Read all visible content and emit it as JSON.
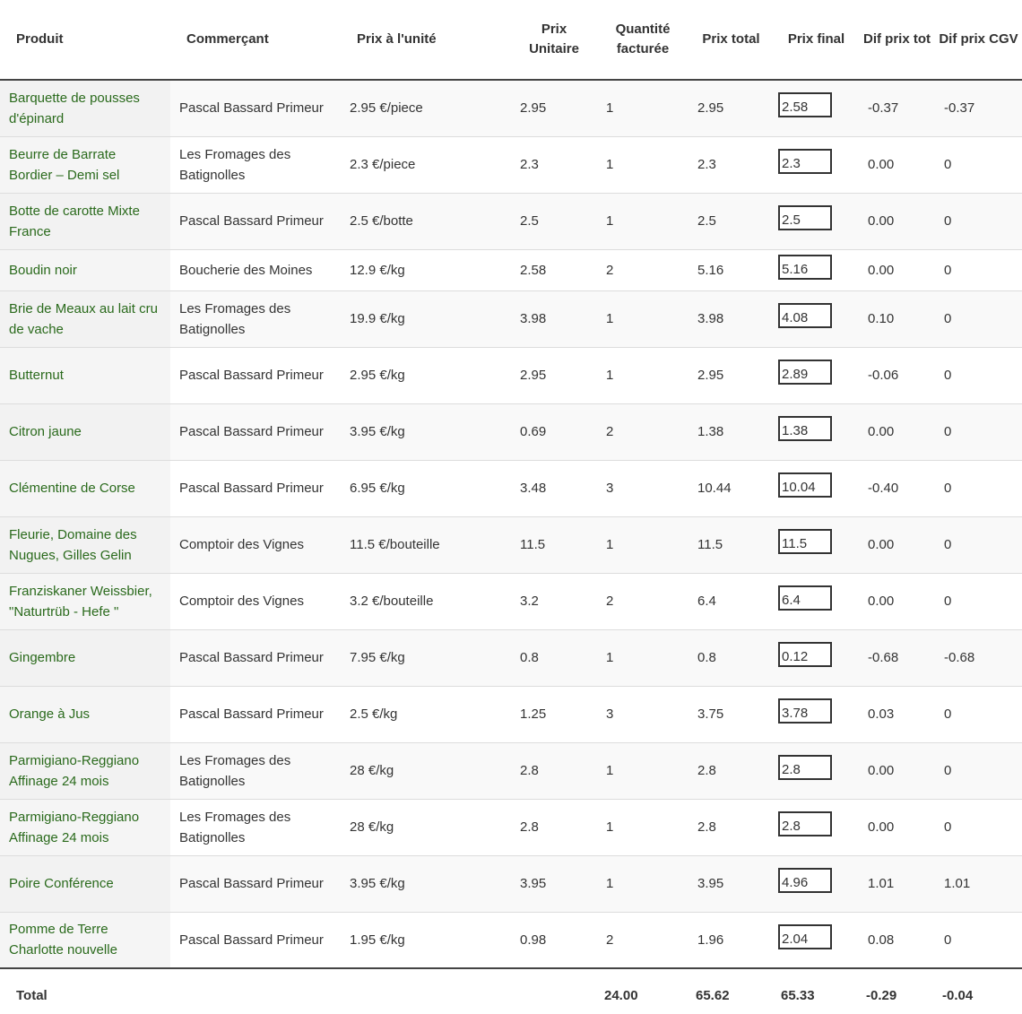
{
  "table": {
    "headers": {
      "produit": "Produit",
      "commercant": "Commerçant",
      "prix_unite": "Prix à l'unité",
      "prix_unitaire": "Prix Unitaire",
      "quantite": "Quantité facturée",
      "prix_total": "Prix total",
      "prix_final": "Prix final",
      "dif_prix_tot": "Dif prix tot",
      "dif_prix_cgv": "Dif prix CGV"
    },
    "rows": [
      {
        "produit": "Barquette de pousses d'épinard",
        "commercant": "Pascal Bassard Primeur",
        "prix_unite": "2.95 €/piece",
        "prix_unitaire": "2.95",
        "quantite": "1",
        "prix_total": "2.95",
        "prix_final": "2.58",
        "dif_tot": "-0.37",
        "dif_cgv": "-0.37"
      },
      {
        "produit": "Beurre de Barrate Bordier – Demi sel",
        "commercant": "Les Fromages des Batignolles",
        "prix_unite": "2.3 €/piece",
        "prix_unitaire": "2.3",
        "quantite": "1",
        "prix_total": "2.3",
        "prix_final": "2.3",
        "dif_tot": "0.00",
        "dif_cgv": "0"
      },
      {
        "produit": "Botte de carotte Mixte France",
        "commercant": "Pascal Bassard Primeur",
        "prix_unite": "2.5 €/botte",
        "prix_unitaire": "2.5",
        "quantite": "1",
        "prix_total": "2.5",
        "prix_final": "2.5",
        "dif_tot": "0.00",
        "dif_cgv": "0"
      },
      {
        "produit": "Boudin noir",
        "commercant": "Boucherie des Moines",
        "prix_unite": "12.9 €/kg",
        "prix_unitaire": "2.58",
        "quantite": "2",
        "prix_total": "5.16",
        "prix_final": "5.16",
        "dif_tot": "0.00",
        "dif_cgv": "0"
      },
      {
        "produit": "Brie de Meaux au lait cru de vache",
        "commercant": "Les Fromages des Batignolles",
        "prix_unite": "19.9 €/kg",
        "prix_unitaire": "3.98",
        "quantite": "1",
        "prix_total": "3.98",
        "prix_final": "4.08",
        "dif_tot": "0.10",
        "dif_cgv": "0"
      },
      {
        "produit": "Butternut",
        "commercant": "Pascal Bassard Primeur",
        "prix_unite": "2.95 €/kg",
        "prix_unitaire": "2.95",
        "quantite": "1",
        "prix_total": "2.95",
        "prix_final": "2.89",
        "dif_tot": "-0.06",
        "dif_cgv": "0"
      },
      {
        "produit": "Citron jaune",
        "commercant": "Pascal Bassard Primeur",
        "prix_unite": "3.95 €/kg",
        "prix_unitaire": "0.69",
        "quantite": "2",
        "prix_total": "1.38",
        "prix_final": "1.38",
        "dif_tot": "0.00",
        "dif_cgv": "0"
      },
      {
        "produit": "Clémentine de Corse",
        "commercant": "Pascal Bassard Primeur",
        "prix_unite": "6.95 €/kg",
        "prix_unitaire": "3.48",
        "quantite": "3",
        "prix_total": "10.44",
        "prix_final": "10.04",
        "dif_tot": "-0.40",
        "dif_cgv": "0"
      },
      {
        "produit": "Fleurie, Domaine des Nugues, Gilles Gelin",
        "commercant": "Comptoir des Vignes",
        "prix_unite": "11.5 €/bouteille",
        "prix_unitaire": "11.5",
        "quantite": "1",
        "prix_total": "11.5",
        "prix_final": "11.5",
        "dif_tot": "0.00",
        "dif_cgv": "0"
      },
      {
        "produit": "Franziskaner Weissbier, \"Naturtrüb - Hefe \"",
        "commercant": "Comptoir des Vignes",
        "prix_unite": "3.2 €/bouteille",
        "prix_unitaire": "3.2",
        "quantite": "2",
        "prix_total": "6.4",
        "prix_final": "6.4",
        "dif_tot": "0.00",
        "dif_cgv": "0"
      },
      {
        "produit": "Gingembre",
        "commercant": "Pascal Bassard Primeur",
        "prix_unite": "7.95 €/kg",
        "prix_unitaire": "0.8",
        "quantite": "1",
        "prix_total": "0.8",
        "prix_final": "0.12",
        "dif_tot": "-0.68",
        "dif_cgv": "-0.68"
      },
      {
        "produit": "Orange à Jus",
        "commercant": "Pascal Bassard Primeur",
        "prix_unite": "2.5 €/kg",
        "prix_unitaire": "1.25",
        "quantite": "3",
        "prix_total": "3.75",
        "prix_final": "3.78",
        "dif_tot": "0.03",
        "dif_cgv": "0"
      },
      {
        "produit": "Parmigiano-Reggiano Affinage 24 mois",
        "commercant": "Les Fromages des Batignolles",
        "prix_unite": "28 €/kg",
        "prix_unitaire": "2.8",
        "quantite": "1",
        "prix_total": "2.8",
        "prix_final": "2.8",
        "dif_tot": "0.00",
        "dif_cgv": "0"
      },
      {
        "produit": "Parmigiano-Reggiano Affinage 24 mois",
        "commercant": "Les Fromages des Batignolles",
        "prix_unite": "28 €/kg",
        "prix_unitaire": "2.8",
        "quantite": "1",
        "prix_total": "2.8",
        "prix_final": "2.8",
        "dif_tot": "0.00",
        "dif_cgv": "0"
      },
      {
        "produit": "Poire Conférence",
        "commercant": "Pascal Bassard Primeur",
        "prix_unite": "3.95 €/kg",
        "prix_unitaire": "3.95",
        "quantite": "1",
        "prix_total": "3.95",
        "prix_final": "4.96",
        "dif_tot": "1.01",
        "dif_cgv": "1.01"
      },
      {
        "produit": "Pomme de Terre Charlotte nouvelle",
        "commercant": "Pascal Bassard Primeur",
        "prix_unite": "1.95 €/kg",
        "prix_unitaire": "0.98",
        "quantite": "2",
        "prix_total": "1.96",
        "prix_final": "2.04",
        "dif_tot": "0.08",
        "dif_cgv": "0"
      }
    ],
    "footer": {
      "label": "Total",
      "quantite": "24.00",
      "prix_total": "65.62",
      "prix_final": "65.33",
      "dif_tot": "-0.29",
      "dif_cgv": "-0.04"
    }
  },
  "colors": {
    "product_link": "#2a6a1c",
    "row_stripe": "#f9f9f9",
    "border": "#dddddd"
  }
}
